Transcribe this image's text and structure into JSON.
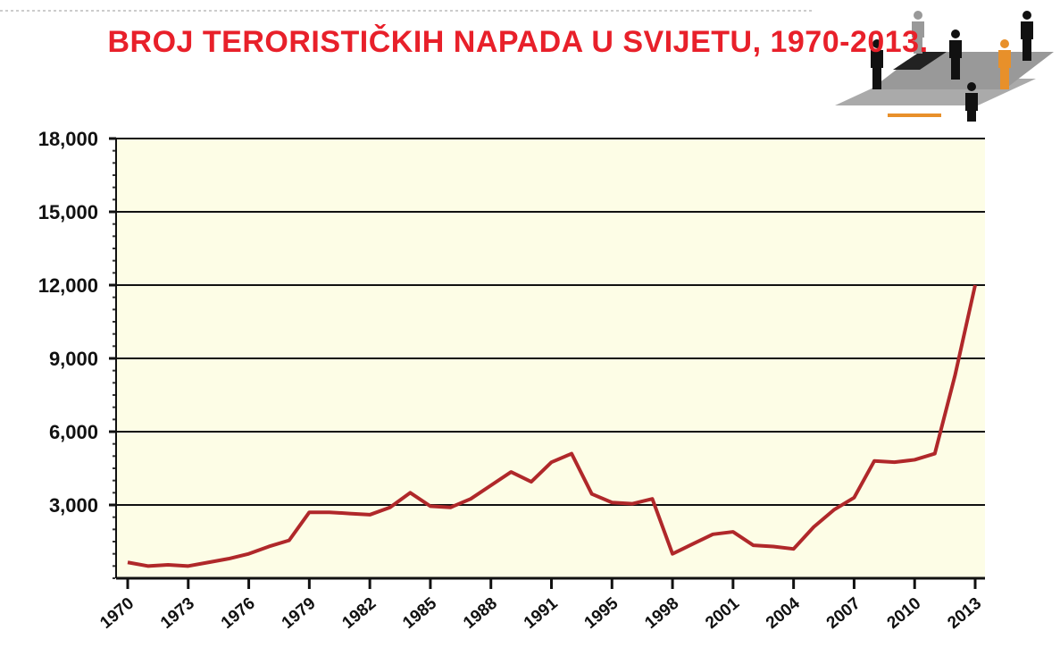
{
  "chart_data": {
    "type": "line",
    "title": "BROJ TERORISTIČKIH NAPADA U SVIJETU, 1970-2013.",
    "categories": [
      "1970",
      null,
      null,
      "1973",
      null,
      null,
      "1976",
      null,
      null,
      "1979",
      null,
      null,
      "1982",
      null,
      null,
      "1985",
      null,
      null,
      "1988",
      null,
      null,
      "1991",
      null,
      null,
      "1995",
      null,
      null,
      "1998",
      null,
      null,
      "2001",
      null,
      null,
      "2004",
      null,
      null,
      "2007",
      null,
      null,
      "2010",
      null,
      null,
      "2013"
    ],
    "values": [
      650,
      500,
      550,
      500,
      650,
      800,
      1000,
      1300,
      1550,
      2700,
      2700,
      2650,
      2600,
      2900,
      3500,
      2950,
      2900,
      3250,
      3800,
      4350,
      3950,
      4750,
      5100,
      3450,
      3100,
      3050,
      3250,
      1000,
      1400,
      1800,
      1900,
      1350,
      1300,
      1200,
      2100,
      2800,
      3300,
      4800,
      4750,
      4850,
      5100,
      8300,
      12000
    ],
    "color": "#b0282a",
    "ylim": [
      0,
      18000
    ],
    "yticks": [
      {
        "value": 3000,
        "label": "3,000"
      },
      {
        "value": 6000,
        "label": "6,000"
      },
      {
        "value": 9000,
        "label": "9,000"
      },
      {
        "value": 12000,
        "label": "12,000"
      },
      {
        "value": 15000,
        "label": "15,000"
      },
      {
        "value": 18000,
        "label": "18,000"
      }
    ],
    "grid": true
  }
}
